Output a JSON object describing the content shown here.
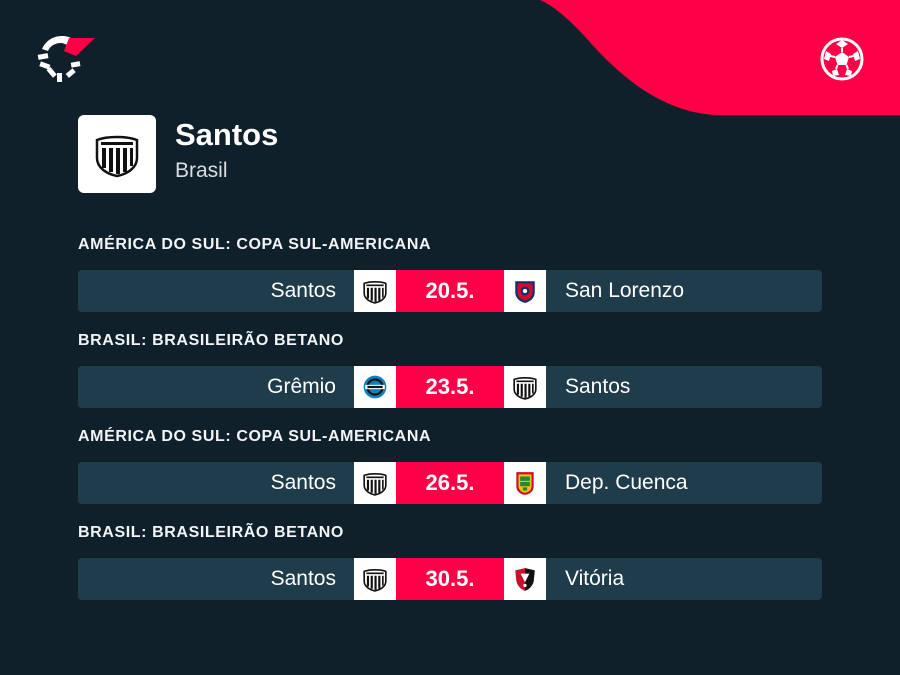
{
  "team": {
    "name": "Santos",
    "country": "Brasil"
  },
  "colors": {
    "background": "#0f202a",
    "accent": "#ff0046",
    "row": "#1e3c49"
  },
  "icons": {
    "app_logo": "flashscore-logo-icon",
    "sport": "soccer-ball-icon"
  },
  "matches": [
    {
      "competition": "AMÉRICA DO SUL: COPA SUL-AMERICANA",
      "home": "Santos",
      "home_crest": "santos-crest-icon",
      "date": "20.5.",
      "away": "San Lorenzo",
      "away_crest": "san-lorenzo-crest-icon"
    },
    {
      "competition": "BRASIL: BRASILEIRÃO BETANO",
      "home": "Grêmio",
      "home_crest": "gremio-crest-icon",
      "date": "23.5.",
      "away": "Santos",
      "away_crest": "santos-crest-icon"
    },
    {
      "competition": "AMÉRICA DO SUL: COPA SUL-AMERICANA",
      "home": "Santos",
      "home_crest": "santos-crest-icon",
      "date": "26.5.",
      "away": "Dep. Cuenca",
      "away_crest": "dep-cuenca-crest-icon"
    },
    {
      "competition": "BRASIL: BRASILEIRÃO BETANO",
      "home": "Santos",
      "home_crest": "santos-crest-icon",
      "date": "30.5.",
      "away": "Vitória",
      "away_crest": "vitoria-crest-icon"
    }
  ]
}
